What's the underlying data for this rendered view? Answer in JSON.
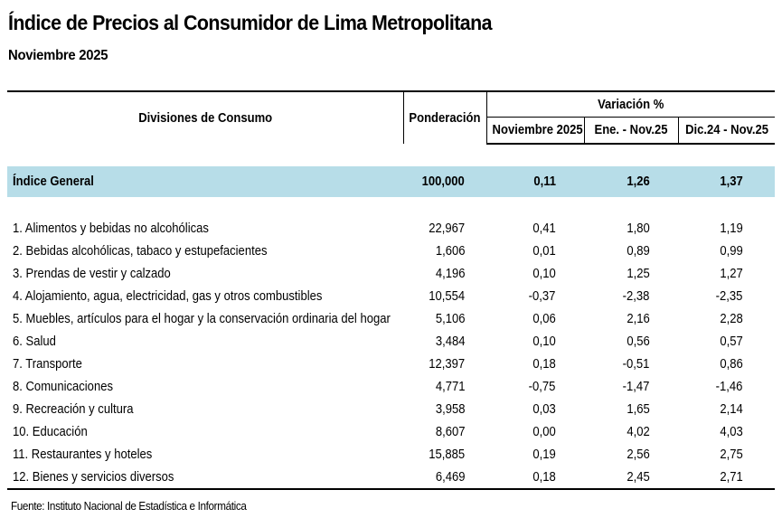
{
  "title": "Índice de Precios al Consumidor de Lima Metropolitana",
  "subtitle": "Noviembre 2025",
  "header": {
    "divisions": "Divisiones de Consumo",
    "weight": "Ponderación",
    "variation": "Variación %",
    "col_month": "Noviembre 2025",
    "col_ytd": "Ene. - Nov.25",
    "col_12m": "Dic.24 - Nov.25"
  },
  "general": {
    "name": "Índice General",
    "weight": "100,000",
    "month": "0,11",
    "ytd": "1,26",
    "m12": "1,37"
  },
  "rows": [
    {
      "name": "1. Alimentos y bebidas no alcohólicas",
      "weight": "22,967",
      "month": "0,41",
      "ytd": "1,80",
      "m12": "1,19"
    },
    {
      "name": "2. Bebidas alcohólicas, tabaco y estupefacientes",
      "weight": "1,606",
      "month": "0,01",
      "ytd": "0,89",
      "m12": "0,99"
    },
    {
      "name": "3. Prendas de vestir y calzado",
      "weight": "4,196",
      "month": "0,10",
      "ytd": "1,25",
      "m12": "1,27"
    },
    {
      "name": "4. Alojamiento, agua, electricidad, gas y otros combustibles",
      "weight": "10,554",
      "month": "-0,37",
      "ytd": "-2,38",
      "m12": "-2,35"
    },
    {
      "name": "5. Muebles, artículos para el hogar y la conservación ordinaria del hogar",
      "weight": "5,106",
      "month": "0,06",
      "ytd": "2,16",
      "m12": "2,28"
    },
    {
      "name": "6. Salud",
      "weight": "3,484",
      "month": "0,10",
      "ytd": "0,56",
      "m12": "0,57"
    },
    {
      "name": "7. Transporte",
      "weight": "12,397",
      "month": "0,18",
      "ytd": "-0,51",
      "m12": "0,86"
    },
    {
      "name": "8. Comunicaciones",
      "weight": "4,771",
      "month": "-0,75",
      "ytd": "-1,47",
      "m12": "-1,46"
    },
    {
      "name": "9. Recreación y cultura",
      "weight": "3,958",
      "month": "0,03",
      "ytd": "1,65",
      "m12": "2,14"
    },
    {
      "name": "10. Educación",
      "weight": "8,607",
      "month": "0,00",
      "ytd": "4,02",
      "m12": "4,03"
    },
    {
      "name": "11. Restaurantes y hoteles",
      "weight": "15,885",
      "month": "0,19",
      "ytd": "2,56",
      "m12": "2,75"
    },
    {
      "name": "12. Bienes y servicios diversos",
      "weight": "6,469",
      "month": "0,18",
      "ytd": "2,45",
      "m12": "2,71"
    }
  ],
  "source": "Fuente: Instituto Nacional de Estadística e Informática",
  "colors": {
    "general_row_bg": "#b7dde8"
  }
}
